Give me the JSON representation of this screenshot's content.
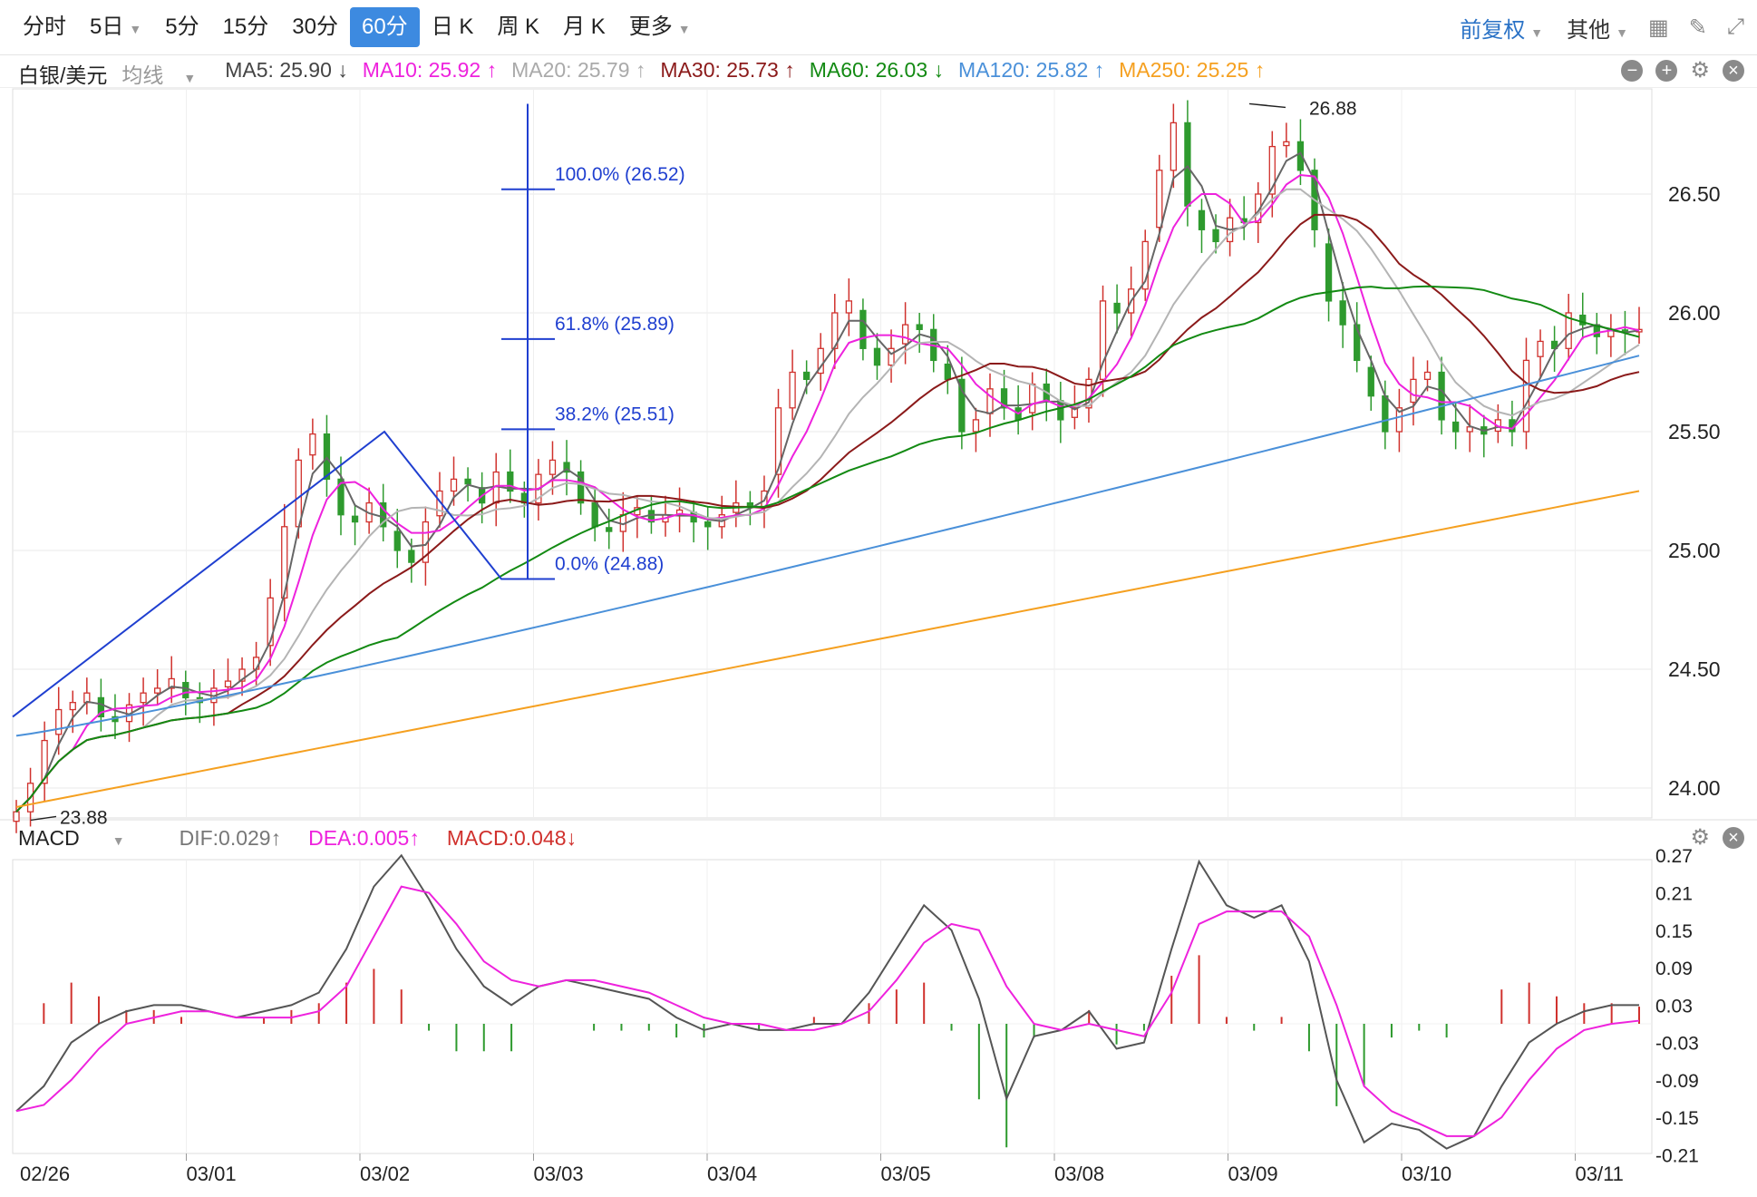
{
  "toolbar": {
    "tabs": [
      "分时",
      "5日",
      "5分",
      "15分",
      "30分",
      "60分",
      "日 K",
      "周 K",
      "月 K",
      "更多"
    ],
    "active_tab": "60分",
    "adjust": "前复权",
    "other": "其他"
  },
  "legend": {
    "symbol": "白银/美元",
    "ma_mode": "均线",
    "ma5": "MA5: 25.90 ↓",
    "ma10": "MA10: 25.92 ↑",
    "ma20": "MA20: 25.79 ↑",
    "ma30": "MA30: 25.73 ↑",
    "ma60": "MA60: 26.03 ↓",
    "ma120": "MA120: 25.82 ↑",
    "ma250": "MA250: 25.25 ↑"
  },
  "macd_legend": {
    "name": "MACD",
    "dif": "DIF:0.029↑",
    "dea": "DEA:0.005↑",
    "macd": "MACD:0.048↓"
  },
  "colors": {
    "up": "#d0312d",
    "down": "#2e9a2e",
    "ma5": "#666666",
    "ma10": "#ee22dd",
    "ma20": "#b4b4b4",
    "ma30": "#8b1a1a",
    "ma60": "#138a13",
    "ma120": "#4a90d9",
    "ma250": "#f5a020",
    "fib": "#1f3fd0",
    "dea": "#ee22dd",
    "dif": "#555555",
    "active_tab": "#3d8ae0"
  },
  "chart_data": [
    {
      "type": "candlestick",
      "yaxis": {
        "ticks": [
          "24.00",
          "24.50",
          "25.00",
          "25.50",
          "26.00",
          "26.50"
        ],
        "range": [
          23.88,
          26.88
        ]
      },
      "xaxis": {
        "labels": [
          "02/26",
          "03/01",
          "03/02",
          "03/03",
          "03/04",
          "03/05",
          "03/08",
          "03/09",
          "03/10",
          "03/11"
        ]
      },
      "closes": [
        23.9,
        24.02,
        24.2,
        24.33,
        24.36,
        24.4,
        24.3,
        24.28,
        24.35,
        24.4,
        24.42,
        24.46,
        24.38,
        24.36,
        24.42,
        24.45,
        24.5,
        24.55,
        24.8,
        25.1,
        25.38,
        25.49,
        25.3,
        25.15,
        25.12,
        25.2,
        25.1,
        25.0,
        24.95,
        25.12,
        25.25,
        25.3,
        25.28,
        25.2,
        25.33,
        25.25,
        25.2,
        25.32,
        25.38,
        25.33,
        25.2,
        25.1,
        25.08,
        25.15,
        25.18,
        25.12,
        25.15,
        25.17,
        25.12,
        25.1,
        25.15,
        25.2,
        25.18,
        25.25,
        25.6,
        25.75,
        25.72,
        25.85,
        26.0,
        26.05,
        25.85,
        25.78,
        25.85,
        25.95,
        25.93,
        25.8,
        25.72,
        25.5,
        25.55,
        25.68,
        25.6,
        25.55,
        25.7,
        25.63,
        25.55,
        25.6,
        25.72,
        26.05,
        26.0,
        26.1,
        26.3,
        26.6,
        26.8,
        26.45,
        26.35,
        26.3,
        26.4,
        26.38,
        26.5,
        26.7,
        26.72,
        26.6,
        26.35,
        26.05,
        25.95,
        25.8,
        25.65,
        25.5,
        25.6,
        25.72,
        25.75,
        25.55,
        25.5,
        25.52,
        25.49,
        25.55,
        25.5,
        25.8,
        25.88,
        25.85,
        26.0,
        25.95,
        25.9,
        25.93,
        25.92,
        25.93
      ],
      "labels": {
        "high": "26.88",
        "low": "23.88"
      },
      "fibonacci": [
        {
          "label": "100.0% (26.52)",
          "value": 26.52
        },
        {
          "label": "61.8% (25.89)",
          "value": 25.89
        },
        {
          "label": "38.2% (25.51)",
          "value": 25.51
        },
        {
          "label": "0.0% (24.88)",
          "value": 24.88
        }
      ],
      "moving_averages": [
        "MA5",
        "MA10",
        "MA20",
        "MA30",
        "MA60",
        "MA120",
        "MA250"
      ]
    },
    {
      "type": "bar",
      "name": "MACD",
      "yaxis": {
        "ticks": [
          "0.27",
          "0.21",
          "0.15",
          "0.09",
          "0.03",
          "-0.03",
          "-0.09",
          "-0.15",
          "-0.21"
        ],
        "range": [
          -0.21,
          0.27
        ]
      },
      "dif": [
        -0.14,
        -0.1,
        -0.03,
        0.0,
        0.02,
        0.03,
        0.03,
        0.02,
        0.01,
        0.02,
        0.03,
        0.05,
        0.12,
        0.22,
        0.27,
        0.2,
        0.12,
        0.06,
        0.03,
        0.06,
        0.07,
        0.06,
        0.05,
        0.04,
        0.01,
        -0.01,
        0.0,
        -0.01,
        -0.01,
        0.0,
        0.0,
        0.05,
        0.12,
        0.19,
        0.15,
        0.04,
        -0.12,
        -0.02,
        -0.01,
        0.02,
        -0.04,
        -0.03,
        0.12,
        0.26,
        0.19,
        0.17,
        0.19,
        0.1,
        -0.09,
        -0.19,
        -0.16,
        -0.17,
        -0.2,
        -0.18,
        -0.1,
        -0.03,
        0.0,
        0.02,
        0.03,
        0.03
      ],
      "dea": [
        -0.14,
        -0.13,
        -0.09,
        -0.04,
        0.0,
        0.01,
        0.02,
        0.02,
        0.01,
        0.01,
        0.01,
        0.02,
        0.06,
        0.14,
        0.22,
        0.21,
        0.16,
        0.1,
        0.07,
        0.06,
        0.07,
        0.07,
        0.06,
        0.05,
        0.03,
        0.01,
        0.0,
        0.0,
        -0.01,
        -0.01,
        0.0,
        0.02,
        0.07,
        0.13,
        0.16,
        0.15,
        0.06,
        0.0,
        -0.01,
        0.0,
        -0.01,
        -0.02,
        0.05,
        0.16,
        0.18,
        0.18,
        0.18,
        0.14,
        0.03,
        -0.1,
        -0.14,
        -0.16,
        -0.18,
        -0.18,
        -0.15,
        -0.09,
        -0.04,
        -0.01,
        0.0,
        0.005
      ]
    }
  ]
}
